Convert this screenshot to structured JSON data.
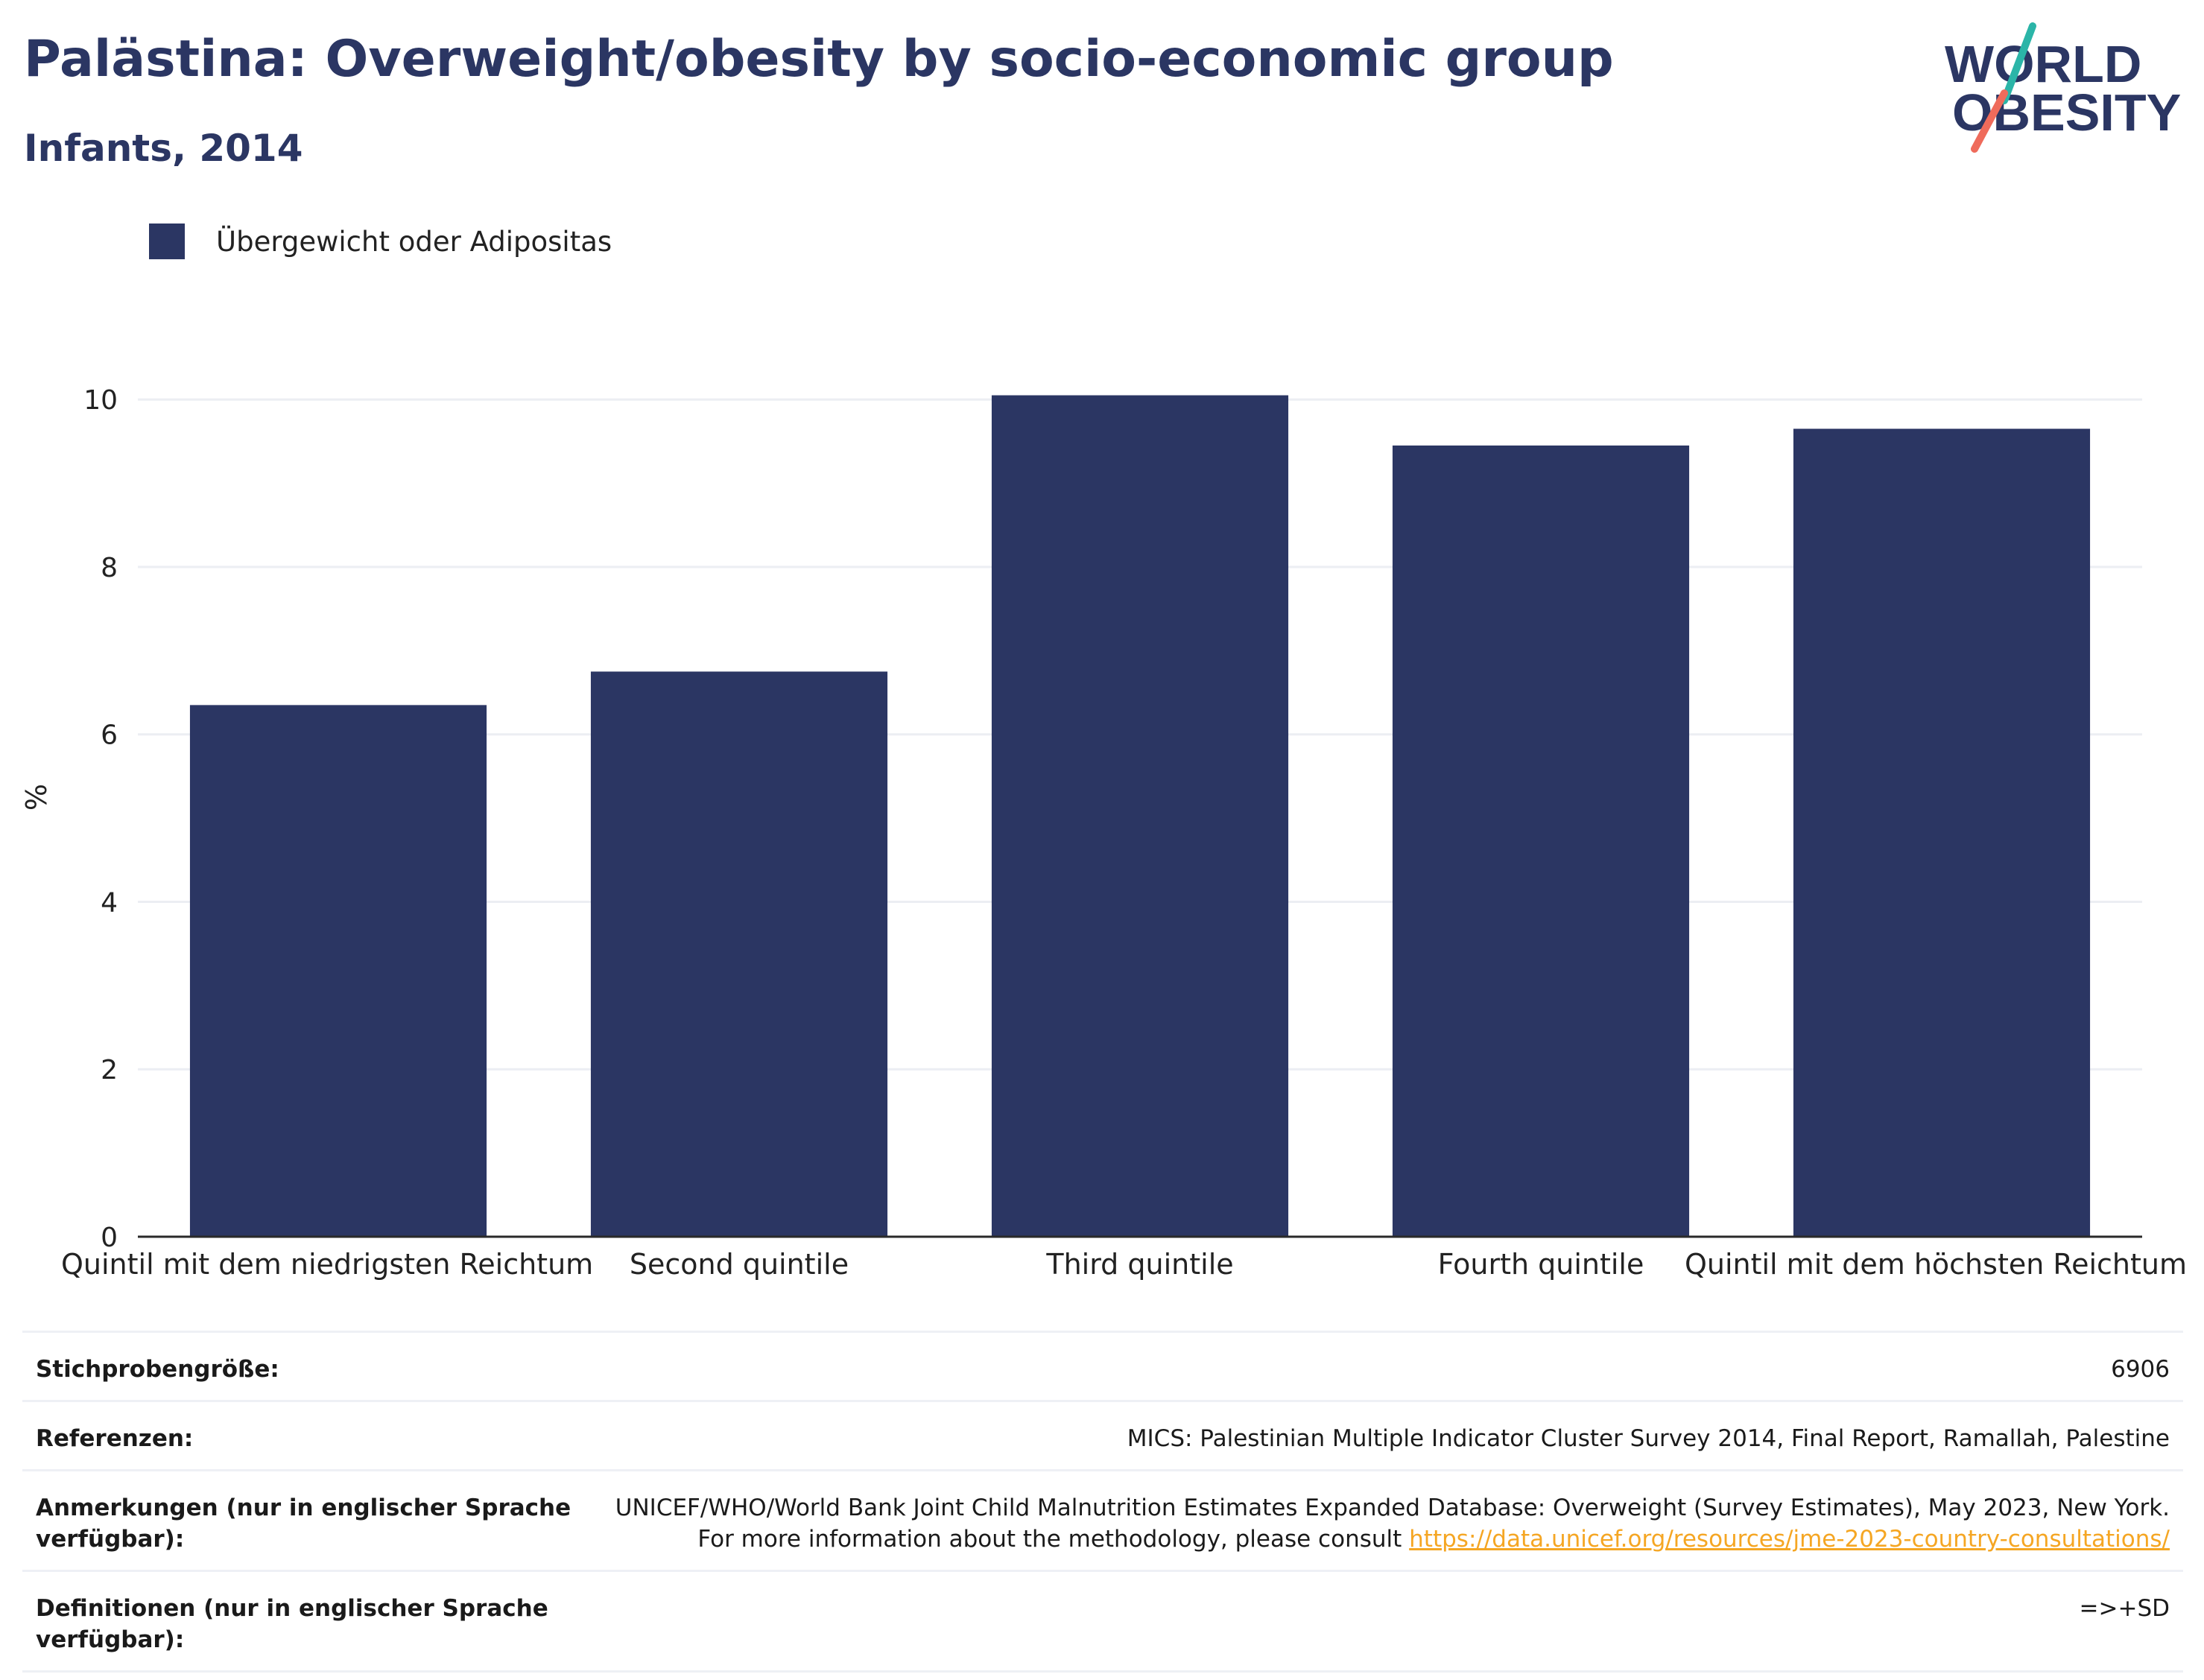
{
  "header": {
    "title": "Palästina: Overweight/obesity by socio-economic group",
    "subtitle": "Infants, 2014"
  },
  "logo": {
    "line1": "WORLD",
    "line2": "OBESITY"
  },
  "colors": {
    "bar": "#2b3663",
    "title": "#2b3663",
    "accent_teal": "#2bb5a8",
    "accent_coral": "#ef6b5b",
    "link": "#f5a623"
  },
  "chart_data": {
    "type": "bar",
    "categories": [
      "Quintil mit dem niedrigsten Reichtum",
      "Second quintile",
      "Third quintile",
      "Fourth quintile",
      "Quintil mit dem höchsten Reichtum"
    ],
    "series": [
      {
        "name": "Übergewicht oder Adipositas",
        "values": [
          6.35,
          6.75,
          10.05,
          9.45,
          9.65
        ]
      }
    ],
    "ylabel": "%",
    "xlabel": "",
    "ylim": [
      0,
      10.5
    ],
    "yticks": [
      0,
      2,
      4,
      6,
      8,
      10
    ],
    "grid": true,
    "legend": "top-left"
  },
  "footer": {
    "rows": [
      {
        "label": "Stichprobengröße:",
        "value": "6906"
      },
      {
        "label": "Referenzen:",
        "value": "MICS: Palestinian Multiple Indicator Cluster Survey 2014, Final Report, Ramallah, Palestine"
      },
      {
        "label": "Anmerkungen (nur in englischer Sprache verfügbar):",
        "value": "UNICEF/WHO/World Bank Joint Child Malnutrition Estimates Expanded Database: Overweight (Survey Estimates), May 2023, New York. For more information about the methodology, please consult",
        "link": "https://data.unicef.org/resources/jme-2023-country-consultations/"
      },
      {
        "label": "Definitionen (nur in englischer Sprache verfügbar):",
        "value": "=>+SD"
      }
    ]
  }
}
